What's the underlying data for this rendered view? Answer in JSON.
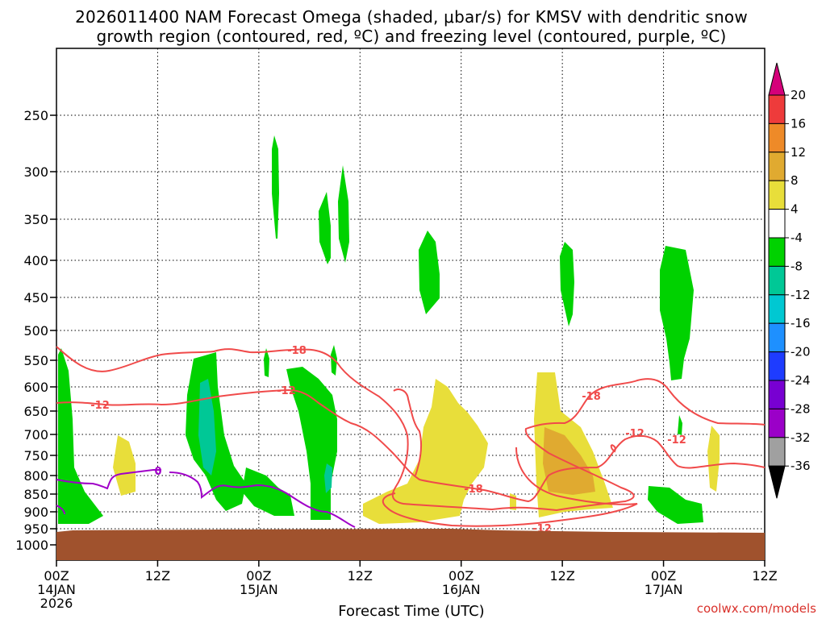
{
  "chart_data": {
    "type": "heatmap",
    "title_line1": "2026011400 NAM Forecast Omega (shaded, μbar/s) for KMSV with dendritic snow",
    "title_line2": "growth region (contoured, red, ºC) and freezing level (contoured, purple, ºC)",
    "xlabel": "Forecast Time (UTC)",
    "credit": "coolwx.com/models",
    "y_axis": {
      "units": "hPa",
      "ticks": [
        "250",
        "300",
        "350",
        "400",
        "450",
        "500",
        "550",
        "600",
        "650",
        "700",
        "750",
        "800",
        "850",
        "900",
        "950",
        "1000"
      ],
      "range": [
        1000,
        200
      ]
    },
    "x_axis": {
      "range_hours": [
        0,
        84
      ],
      "ticks": [
        {
          "hour": 0,
          "line1": "00Z",
          "line2": "14JAN",
          "line3": "2026"
        },
        {
          "hour": 12,
          "line1": "12Z",
          "line2": "",
          "line3": ""
        },
        {
          "hour": 24,
          "line1": "00Z",
          "line2": "15JAN",
          "line3": ""
        },
        {
          "hour": 36,
          "line1": "12Z",
          "line2": "",
          "line3": ""
        },
        {
          "hour": 48,
          "line1": "00Z",
          "line2": "16JAN",
          "line3": ""
        },
        {
          "hour": 60,
          "line1": "12Z",
          "line2": "",
          "line3": ""
        },
        {
          "hour": 72,
          "line1": "00Z",
          "line2": "17JAN",
          "line3": ""
        },
        {
          "hour": 84,
          "line1": "12Z",
          "line2": "",
          "line3": ""
        }
      ]
    },
    "colorbar": {
      "labels": [
        "20",
        "16",
        "12",
        "8",
        "4",
        "-4",
        "-8",
        "-12",
        "-16",
        "-20",
        "-24",
        "-28",
        "-32",
        "-36"
      ],
      "colors": [
        "#d5007a",
        "#ee3b3b",
        "#ee8a28",
        "#e0aa30",
        "#e8de3a",
        "#ffffff",
        "#00d200",
        "#00c896",
        "#00c8d2",
        "#1e90ff",
        "#1e3cff",
        "#7800d2",
        "#9b00c8",
        "#a0a0a0",
        "#000000"
      ]
    },
    "contours": {
      "dgz_color": "#f04a4a",
      "freezing_color": "#a000c8",
      "labels": [
        "-18",
        "-12",
        "-12",
        "-18",
        "-12",
        "-18",
        "-12",
        "-12",
        "0"
      ]
    },
    "ground_color": "#a0522d"
  }
}
